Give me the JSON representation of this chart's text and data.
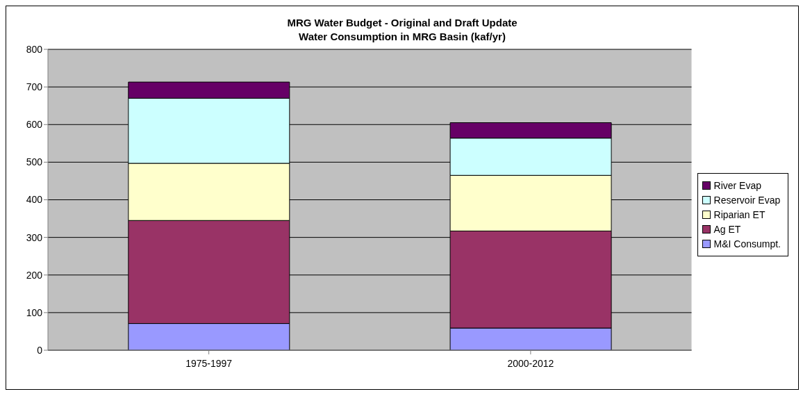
{
  "chart_data": {
    "type": "bar",
    "title": "MRG Water Budget - Original and Draft Update",
    "subtitle": "Water Consumption in MRG Basin (kaf/yr)",
    "categories": [
      "1975-1997",
      "2000-2012"
    ],
    "stacked": true,
    "series": [
      {
        "name": "M&I Consumpt.",
        "color": "#9999ff",
        "values": [
          71,
          59
        ]
      },
      {
        "name": "Ag ET",
        "color": "#993366",
        "values": [
          274,
          258
        ]
      },
      {
        "name": "Riparian ET",
        "color": "#ffffcc",
        "values": [
          152,
          148
        ]
      },
      {
        "name": "Reservoir Evap",
        "color": "#ccffff",
        "values": [
          173,
          99
        ]
      },
      {
        "name": "River Evap",
        "color": "#660066",
        "values": [
          43,
          41
        ]
      }
    ],
    "ylim": [
      0,
      800
    ],
    "yticks": [
      0,
      100,
      200,
      300,
      400,
      500,
      600,
      700,
      800
    ],
    "grid": "y",
    "legend": "right"
  }
}
